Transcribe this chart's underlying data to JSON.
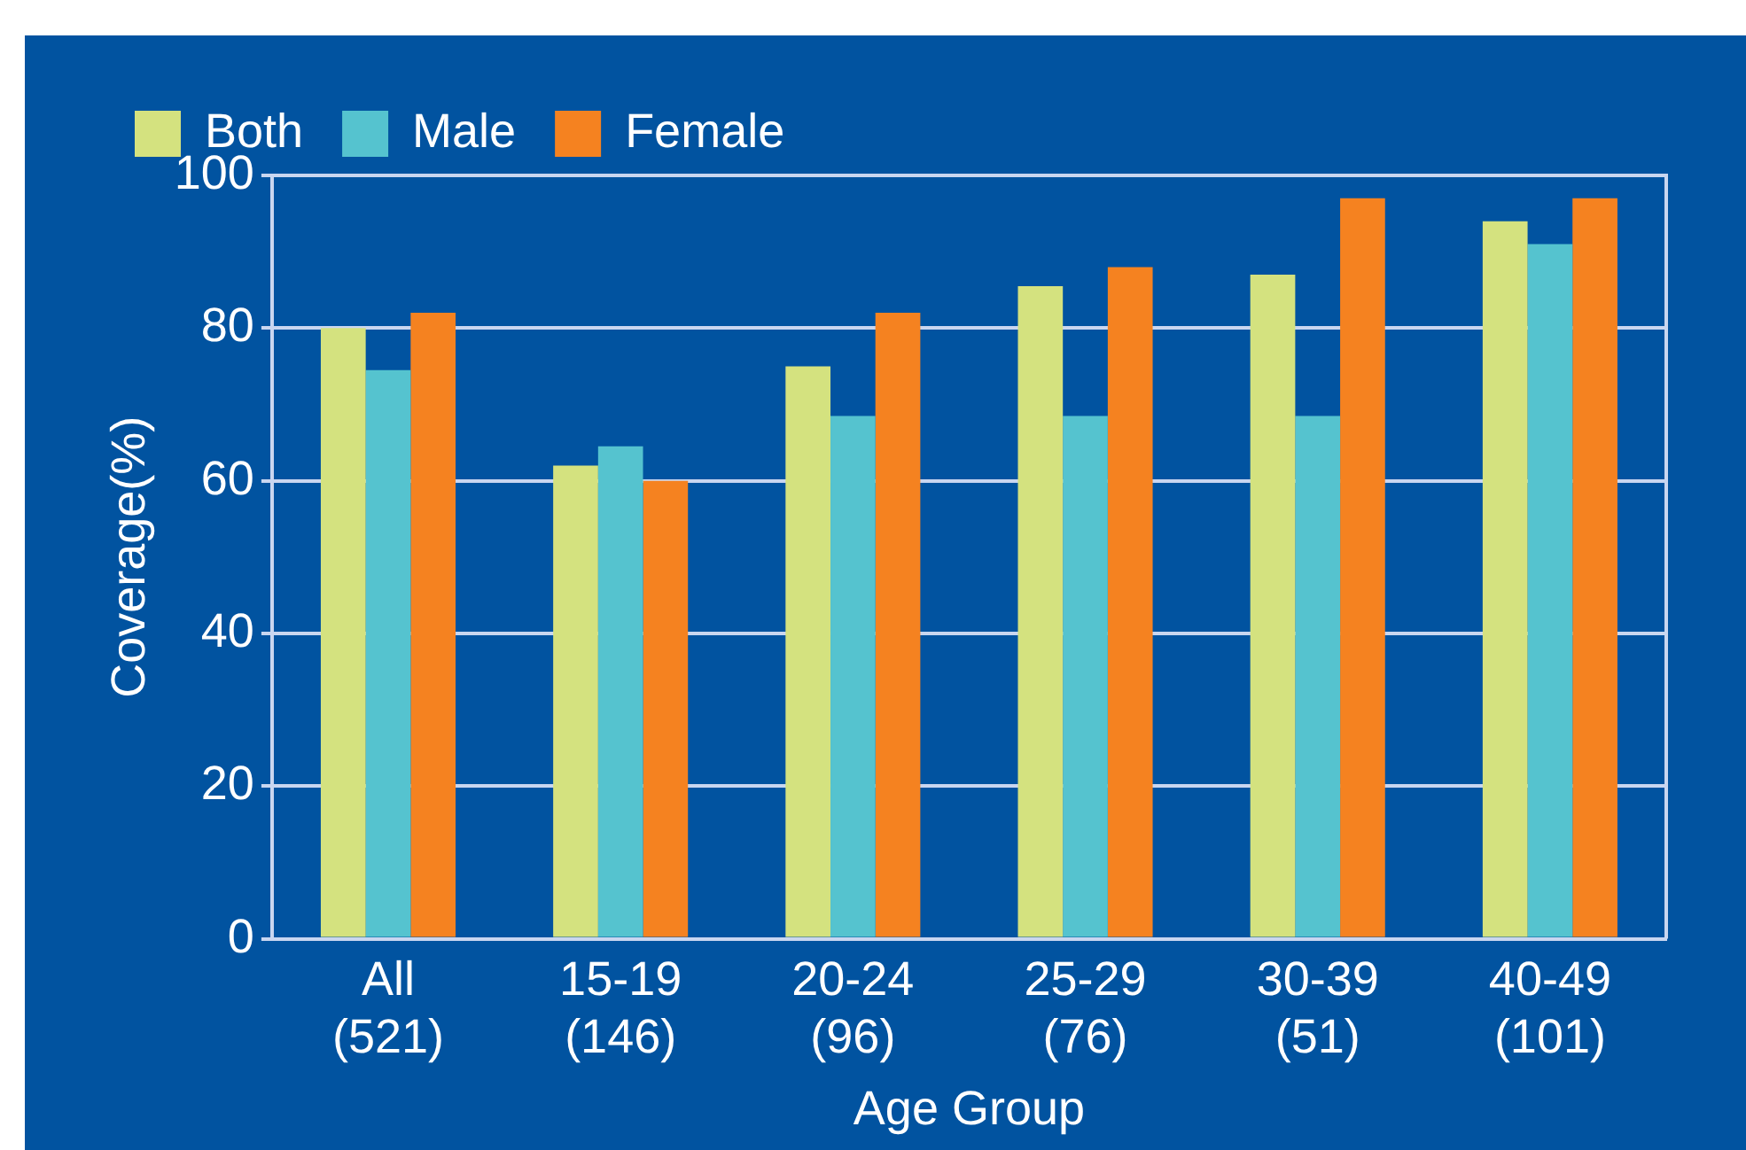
{
  "chart_data": {
    "type": "bar",
    "xlabel": "Age Group",
    "ylabel": "Coverage(%)",
    "categories": [
      "All\n(521)",
      "15-19\n(146)",
      "20-24\n(96)",
      "25-29\n(76)",
      "30-39\n(51)",
      "40-49\n(101)"
    ],
    "series": [
      {
        "name": "Both",
        "color": "#d4e27f",
        "values": [
          80,
          62,
          75,
          85.5,
          87,
          94
        ]
      },
      {
        "name": "Male",
        "color": "#55c3cf",
        "values": [
          74.5,
          64.5,
          68.5,
          68.5,
          68.5,
          91
        ]
      },
      {
        "name": "Female",
        "color": "#f58220",
        "values": [
          82,
          60,
          82,
          88,
          97,
          97
        ]
      }
    ],
    "ylim": [
      0,
      100
    ],
    "yticks": [
      0,
      20,
      40,
      60,
      80,
      100
    ],
    "grid": "y",
    "legend": "top left"
  }
}
